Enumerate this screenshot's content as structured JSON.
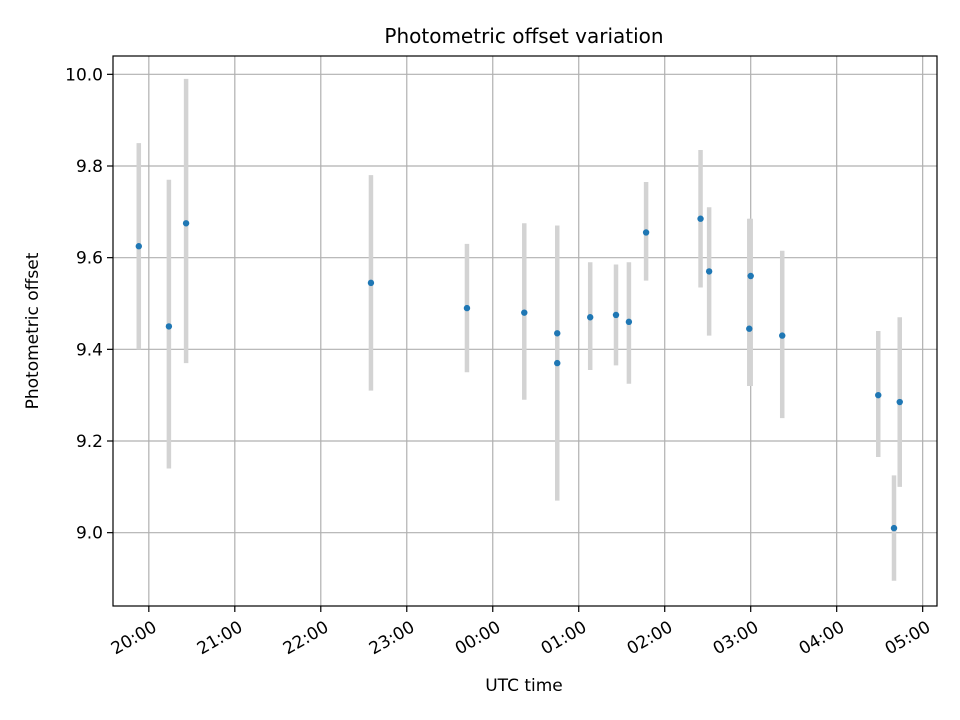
{
  "chart_data": {
    "type": "scatter",
    "title": "Photometric offset variation",
    "xlabel": "UTC time",
    "ylabel": "Photometric offset",
    "x_ticks": [
      "20:00",
      "21:00",
      "22:00",
      "23:00",
      "00:00",
      "01:00",
      "02:00",
      "03:00",
      "04:00",
      "05:00"
    ],
    "y_ticks": [
      "9.0",
      "9.2",
      "9.4",
      "9.6",
      "9.8",
      "10.0"
    ],
    "xlim": [
      "19:35",
      "05:10"
    ],
    "ylim": [
      8.84,
      10.04
    ],
    "grid": true,
    "points": [
      {
        "time": "19:53",
        "y": 9.625,
        "err_low": 9.4,
        "err_high": 9.85
      },
      {
        "time": "20:14",
        "y": 9.45,
        "err_low": 9.14,
        "err_high": 9.77
      },
      {
        "time": "20:26",
        "y": 9.675,
        "err_low": 9.37,
        "err_high": 9.99
      },
      {
        "time": "22:35",
        "y": 9.545,
        "err_low": 9.31,
        "err_high": 9.78
      },
      {
        "time": "23:42",
        "y": 9.49,
        "err_low": 9.35,
        "err_high": 9.63
      },
      {
        "time": "00:22",
        "y": 9.48,
        "err_low": 9.29,
        "err_high": 9.675
      },
      {
        "time": "00:45",
        "y": 9.435,
        "err_low": 9.28,
        "err_high": 9.67
      },
      {
        "time": "00:45",
        "y": 9.37,
        "err_low": 9.07,
        "err_high": 9.67
      },
      {
        "time": "01:08",
        "y": 9.47,
        "err_low": 9.355,
        "err_high": 9.59
      },
      {
        "time": "01:26",
        "y": 9.475,
        "err_low": 9.365,
        "err_high": 9.585
      },
      {
        "time": "01:35",
        "y": 9.46,
        "err_low": 9.325,
        "err_high": 9.59
      },
      {
        "time": "01:47",
        "y": 9.655,
        "err_low": 9.55,
        "err_high": 9.765
      },
      {
        "time": "02:25",
        "y": 9.685,
        "err_low": 9.535,
        "err_high": 9.835
      },
      {
        "time": "02:31",
        "y": 9.57,
        "err_low": 9.43,
        "err_high": 9.71
      },
      {
        "time": "02:59",
        "y": 9.445,
        "err_low": 9.32,
        "err_high": 9.685
      },
      {
        "time": "03:00",
        "y": 9.56,
        "err_low": 9.32,
        "err_high": 9.685
      },
      {
        "time": "03:22",
        "y": 9.43,
        "err_low": 9.25,
        "err_high": 9.615
      },
      {
        "time": "04:29",
        "y": 9.3,
        "err_low": 9.165,
        "err_high": 9.44
      },
      {
        "time": "04:40",
        "y": 9.01,
        "err_low": 8.895,
        "err_high": 9.125
      },
      {
        "time": "04:44",
        "y": 9.285,
        "err_low": 9.1,
        "err_high": 9.47
      }
    ],
    "colors": {
      "marker": "#1f77b4",
      "errorbar": "#d3d3d3",
      "grid": "#b0b0b0",
      "axes": "#000000"
    }
  }
}
